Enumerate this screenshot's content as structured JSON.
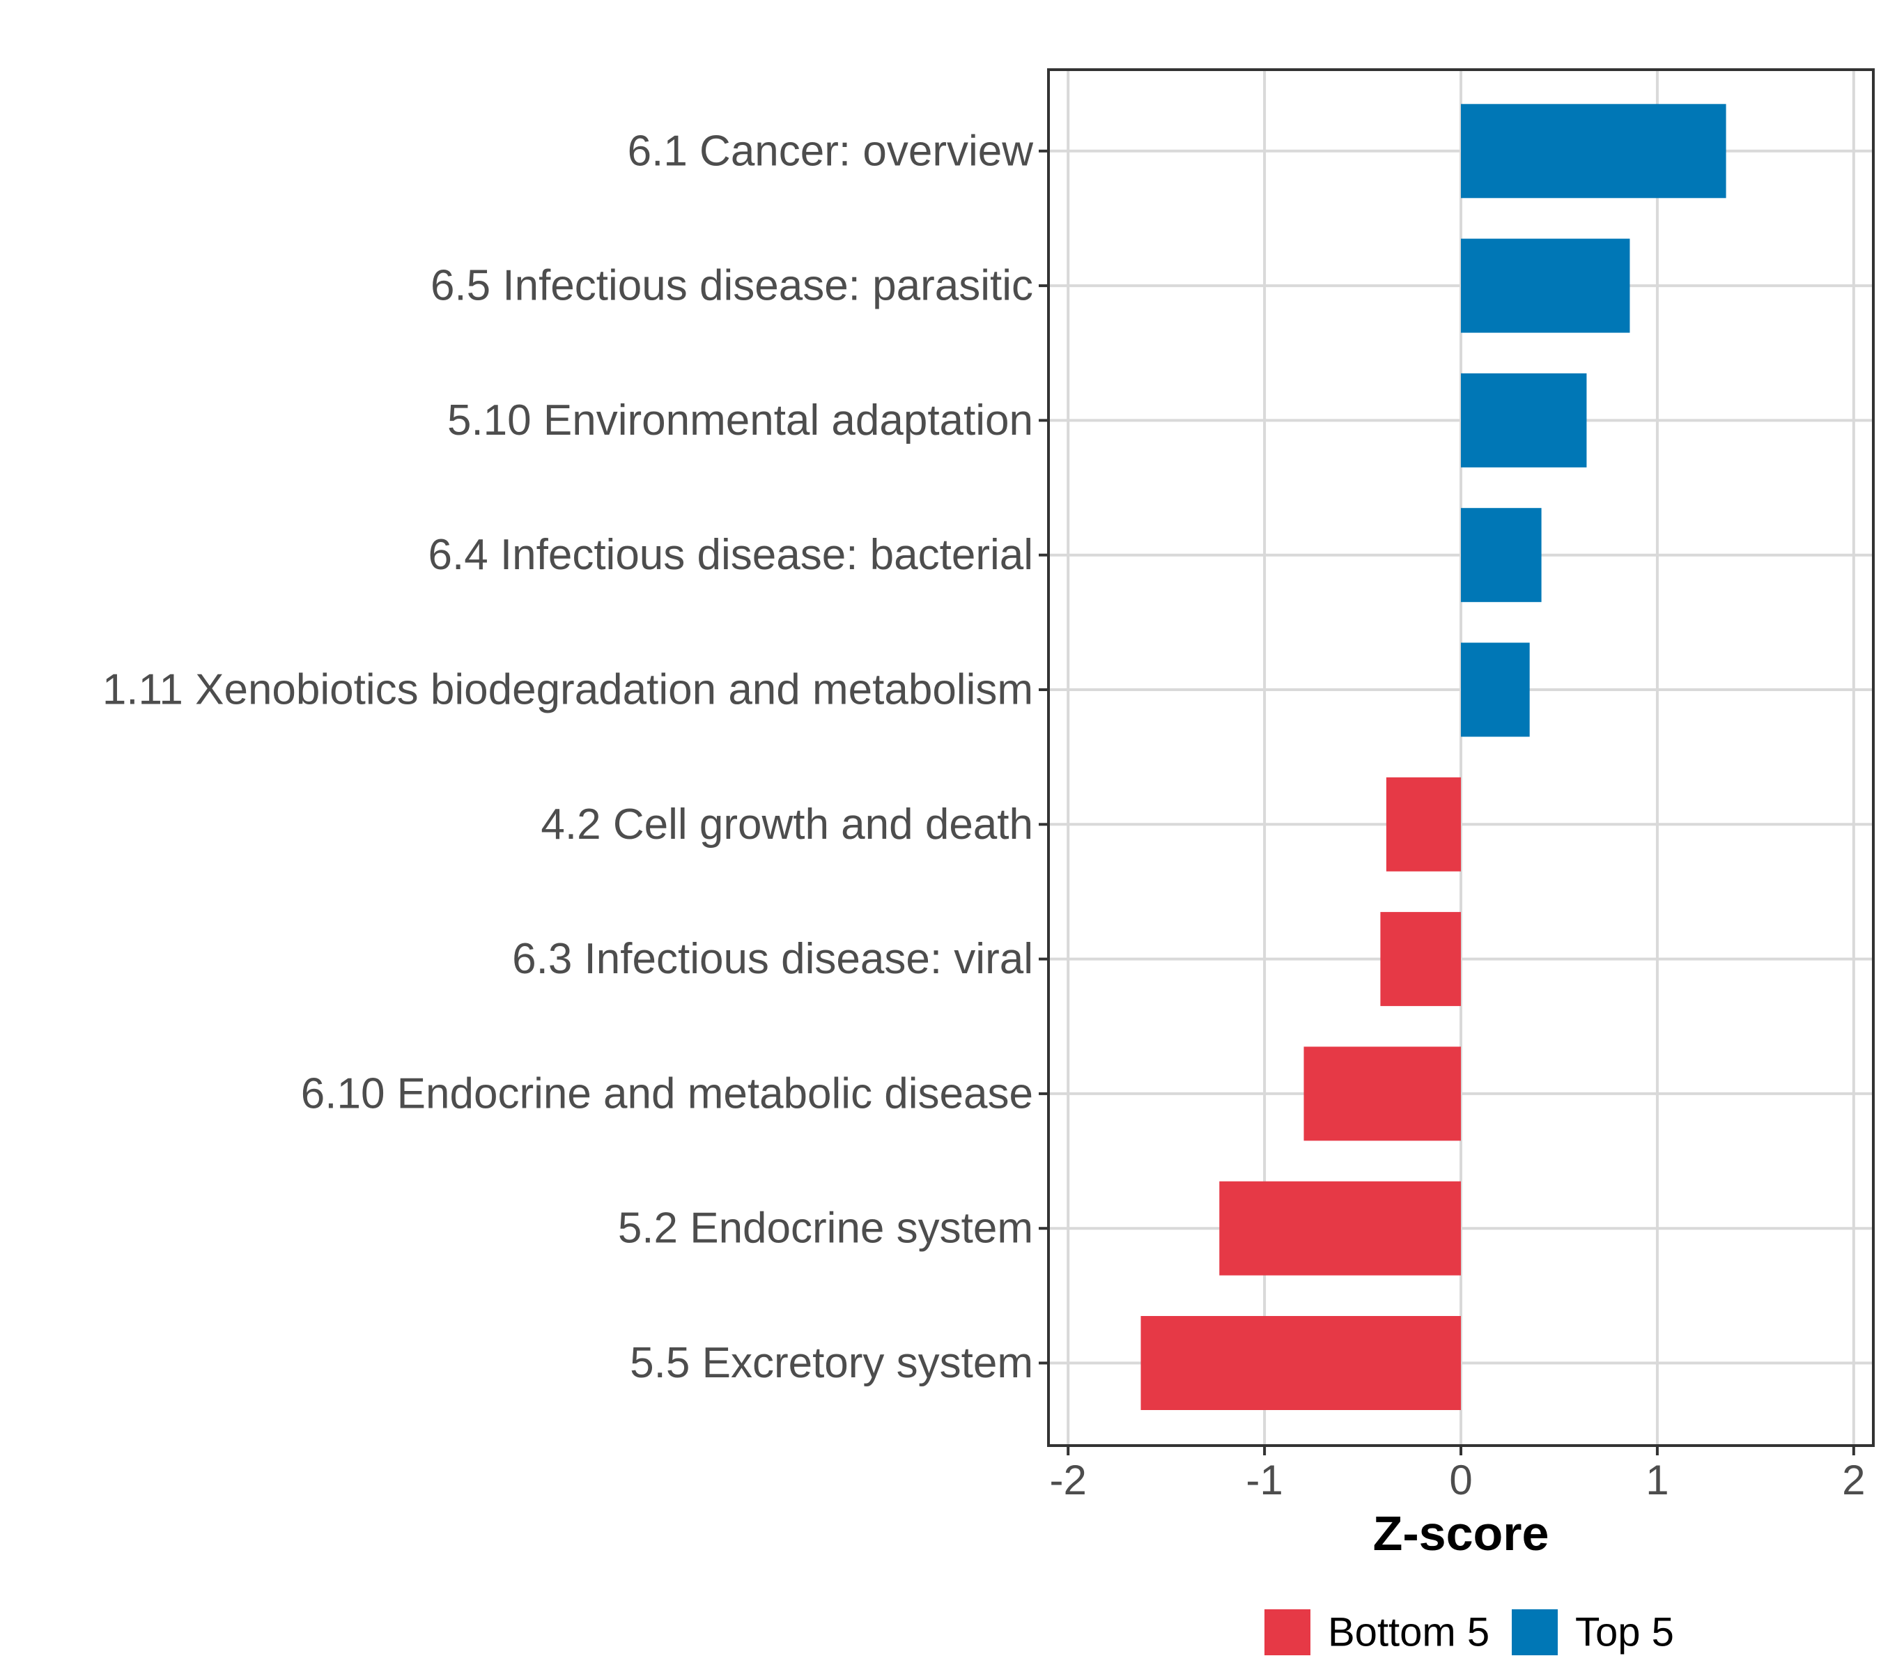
{
  "chart_data": {
    "type": "bar",
    "orientation": "horizontal",
    "title": "",
    "xlabel": "Z-score",
    "ylabel": "",
    "xlim": [
      -2.1,
      2.1
    ],
    "x_ticks": [
      -2,
      -1,
      0,
      1,
      2
    ],
    "x_tick_labels": [
      "-2",
      "-1",
      "0",
      "1",
      "2"
    ],
    "grid": true,
    "categories": [
      "6.1 Cancer: overview",
      "6.5 Infectious disease: parasitic",
      "5.10 Environmental adaptation",
      "6.4 Infectious disease: bacterial",
      "1.11 Xenobiotics biodegradation and metabolism",
      "4.2 Cell growth and death",
      "6.3 Infectious disease: viral",
      "6.10 Endocrine and metabolic disease",
      "5.2 Endocrine system",
      "5.5 Excretory system"
    ],
    "values": [
      1.35,
      0.86,
      0.64,
      0.41,
      0.35,
      -0.38,
      -0.41,
      -0.8,
      -1.23,
      -1.63
    ],
    "groups": [
      "Top 5",
      "Top 5",
      "Top 5",
      "Top 5",
      "Top 5",
      "Bottom 5",
      "Bottom 5",
      "Bottom 5",
      "Bottom 5",
      "Bottom 5"
    ],
    "legend": {
      "placement": "bottom",
      "entries": [
        {
          "label": "Bottom 5",
          "color": "#E63946"
        },
        {
          "label": "Top 5",
          "color": "#0077B6"
        }
      ]
    }
  }
}
